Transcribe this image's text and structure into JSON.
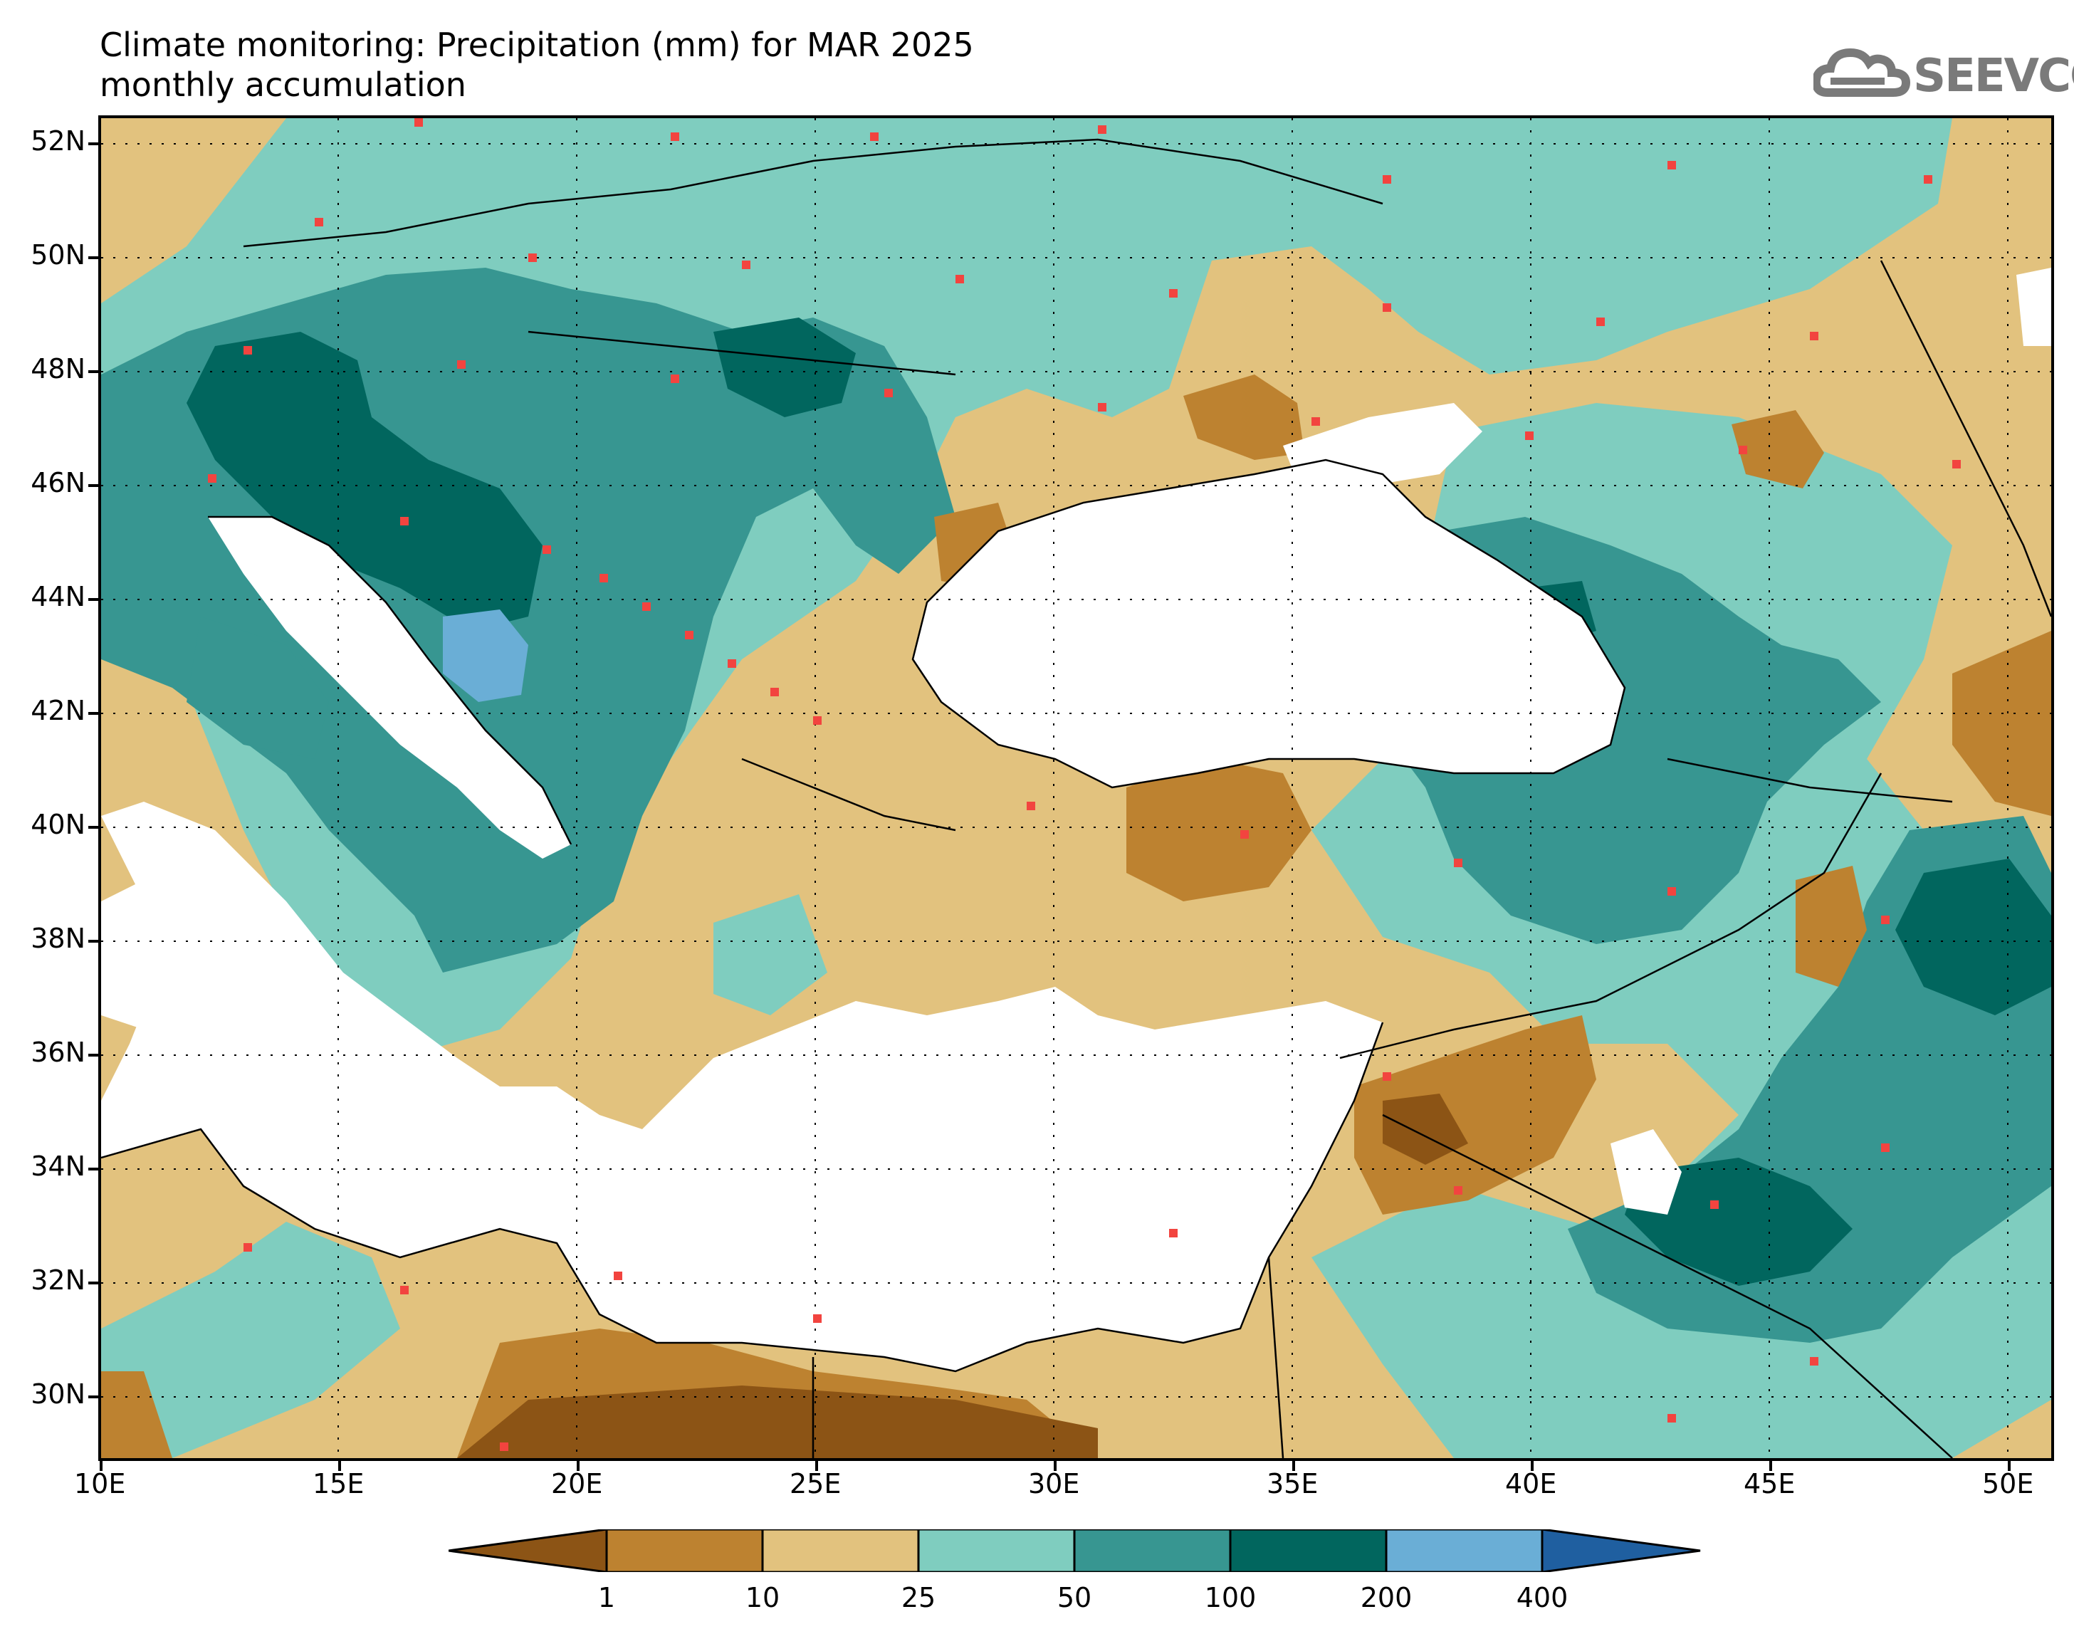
{
  "title": {
    "line1": "Climate monitoring: Precipitation (mm) for MAR 2025",
    "line2": "monthly accumulation"
  },
  "logo": {
    "text": "SEEVCCC",
    "icon": "cloud-icon"
  },
  "map": {
    "lat_labels": [
      "52N",
      "50N",
      "48N",
      "46N",
      "44N",
      "42N",
      "40N",
      "38N",
      "36N",
      "34N",
      "32N",
      "30N"
    ],
    "lon_labels": [
      "10E",
      "15E",
      "20E",
      "25E",
      "30E",
      "35E",
      "40E",
      "45E",
      "50E"
    ]
  },
  "legend": {
    "ticks": [
      "1",
      "10",
      "25",
      "50",
      "100",
      "200",
      "400"
    ],
    "colors": [
      "#8c5415",
      "#bd8230",
      "#e2c27e",
      "#7fcdbf",
      "#379691",
      "#01665e",
      "#6aaed6",
      "#1f5fa0"
    ]
  },
  "chart_data": {
    "type": "heatmap",
    "variable": "Precipitation (mm)",
    "period": "MAR 2025",
    "lon_range": [
      10,
      51
    ],
    "lat_range": [
      29,
      52.5
    ],
    "levels": [
      1,
      10,
      25,
      50,
      100,
      200,
      400
    ]
  }
}
